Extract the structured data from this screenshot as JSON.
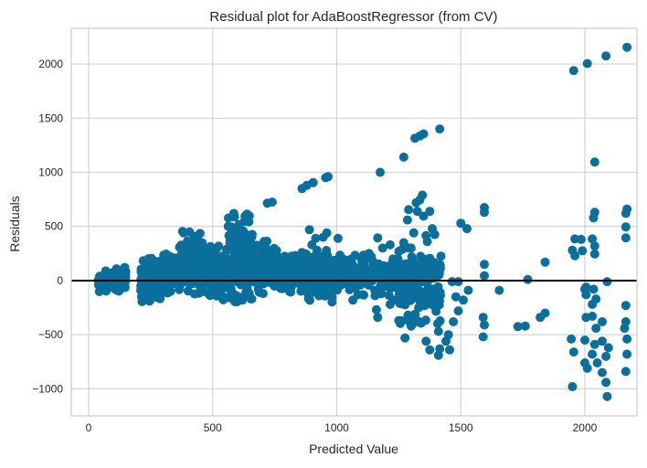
{
  "chart_data": {
    "type": "scatter",
    "title": "Residual plot for AdaBoostRegressor (from CV)",
    "xlabel": "Predicted Value",
    "ylabel": "Residuals",
    "xlim": [
      -70,
      2210
    ],
    "ylim": [
      -1250,
      2330
    ],
    "xticks": [
      0,
      500,
      1000,
      1500,
      2000
    ],
    "yticks": [
      -1000,
      -500,
      0,
      500,
      1000,
      1500,
      2000
    ],
    "xtick_labels": [
      "0",
      "500",
      "1000",
      "1500",
      "2000"
    ],
    "ytick_labels": [
      "−1000",
      "−500",
      "0",
      "500",
      "1000",
      "1500",
      "2000"
    ],
    "grid": true,
    "zero_line": 0,
    "colors": {
      "points": "#0a6f9c",
      "grid": "#d3d3d3",
      "axes_edge": "#cccccc",
      "zero_line": "#000000",
      "background": "#ffffff"
    },
    "series": [
      {
        "points": [
          [
            2170,
            2155
          ],
          [
            2085,
            2075
          ],
          [
            2010,
            2005
          ],
          [
            1955,
            1940
          ],
          [
            2040,
            1095
          ],
          [
            1415,
            1400
          ],
          [
            1350,
            1355
          ],
          [
            1335,
            1335
          ],
          [
            1315,
            1315
          ],
          [
            1270,
            1140
          ],
          [
            1175,
            1000
          ],
          [
            965,
            960
          ],
          [
            955,
            950
          ],
          [
            905,
            905
          ],
          [
            880,
            880
          ],
          [
            860,
            850
          ],
          [
            740,
            725
          ],
          [
            720,
            715
          ],
          [
            1345,
            790
          ],
          [
            1335,
            745
          ],
          [
            1320,
            720
          ],
          [
            1325,
            640
          ],
          [
            1290,
            655
          ],
          [
            1375,
            640
          ],
          [
            1285,
            560
          ],
          [
            1350,
            595
          ],
          [
            2170,
            660
          ],
          [
            2165,
            620
          ],
          [
            1595,
            675
          ],
          [
            1595,
            630
          ],
          [
            2040,
            630
          ],
          [
            2035,
            580
          ],
          [
            1960,
            385
          ],
          [
            1985,
            380
          ],
          [
            2030,
            385
          ],
          [
            2040,
            320
          ],
          [
            1950,
            280
          ],
          [
            1990,
            275
          ],
          [
            2040,
            245
          ],
          [
            1960,
            230
          ],
          [
            2165,
            495
          ],
          [
            2165,
            395
          ],
          [
            1525,
            480
          ],
          [
            1500,
            530
          ],
          [
            1385,
            480
          ],
          [
            1395,
            425
          ],
          [
            1360,
            415
          ],
          [
            1310,
            440
          ],
          [
            1365,
            360
          ],
          [
            1270,
            350
          ],
          [
            1215,
            330
          ],
          [
            1185,
            300
          ],
          [
            1250,
            270
          ],
          [
            1300,
            300
          ],
          [
            1130,
            250
          ],
          [
            1100,
            195
          ],
          [
            1060,
            200
          ],
          [
            1075,
            115
          ],
          [
            1130,
            95
          ],
          [
            1175,
            100
          ],
          [
            1045,
            60
          ],
          [
            975,
            120
          ],
          [
            960,
            440
          ],
          [
            915,
            390
          ],
          [
            890,
            470
          ],
          [
            900,
            330
          ],
          [
            1005,
            390
          ],
          [
            1165,
            395
          ],
          [
            945,
            400
          ],
          [
            860,
            260
          ],
          [
            1595,
            150
          ],
          [
            1595,
            45
          ],
          [
            1655,
            -90
          ],
          [
            1770,
            10
          ],
          [
            1840,
            170
          ],
          [
            1760,
            -420
          ],
          [
            1730,
            -425
          ],
          [
            1840,
            -300
          ],
          [
            1820,
            -340
          ],
          [
            2000,
            -80
          ],
          [
            2090,
            -10
          ],
          [
            2165,
            -230
          ],
          [
            2165,
            -380
          ],
          [
            2160,
            -440
          ],
          [
            2170,
            -540
          ],
          [
            2170,
            -680
          ],
          [
            2165,
            -840
          ],
          [
            2085,
            -940
          ],
          [
            2070,
            -850
          ],
          [
            2090,
            -1070
          ],
          [
            2040,
            -590
          ],
          [
            2045,
            -440
          ],
          [
            2030,
            -330
          ],
          [
            2030,
            -220
          ],
          [
            2045,
            -170
          ],
          [
            2005,
            -130
          ],
          [
            2035,
            -80
          ],
          [
            2005,
            -60
          ],
          [
            1950,
            -980
          ],
          [
            2000,
            -550
          ],
          [
            2010,
            -810
          ],
          [
            1955,
            -660
          ],
          [
            1945,
            -540
          ],
          [
            2005,
            -340
          ],
          [
            2070,
            -560
          ],
          [
            2085,
            -700
          ],
          [
            2070,
            -380
          ],
          [
            2050,
            -760
          ],
          [
            2095,
            -620
          ],
          [
            2030,
            -680
          ],
          [
            2000,
            -760
          ],
          [
            1590,
            -340
          ],
          [
            1595,
            -410
          ],
          [
            1590,
            -520
          ],
          [
            1415,
            -630
          ],
          [
            1410,
            -690
          ],
          [
            1375,
            -640
          ],
          [
            1360,
            -560
          ],
          [
            1440,
            -560
          ],
          [
            1410,
            -470
          ],
          [
            1455,
            -640
          ],
          [
            1450,
            -500
          ],
          [
            1300,
            -420
          ],
          [
            1250,
            -370
          ],
          [
            1275,
            -530
          ],
          [
            1490,
            -280
          ],
          [
            1510,
            -180
          ],
          [
            1480,
            -150
          ],
          [
            1470,
            -380
          ],
          [
            1530,
            -90
          ],
          [
            1465,
            -10
          ],
          [
            1490,
            -10
          ],
          [
            1230,
            -180
          ],
          [
            1215,
            -220
          ],
          [
            1160,
            -270
          ],
          [
            1165,
            -340
          ],
          [
            1065,
            -180
          ],
          [
            1085,
            -130
          ],
          [
            1105,
            -130
          ],
          [
            1180,
            -120
          ],
          [
            1310,
            -350
          ],
          [
            1330,
            -250
          ],
          [
            1345,
            -180
          ],
          [
            1355,
            -230
          ]
        ]
      }
    ],
    "dense_bands": [
      {
        "x": [
          40,
          75
        ],
        "y": [
          -120,
          90
        ],
        "count": 70
      },
      {
        "x": [
          95,
          150
        ],
        "y": [
          -110,
          130
        ],
        "count": 110
      },
      {
        "x": [
          210,
          300
        ],
        "y": [
          -200,
          220
        ],
        "count": 220
      },
      {
        "x": [
          300,
          380
        ],
        "y": [
          -130,
          310
        ],
        "count": 110
      },
      {
        "x": [
          370,
          470
        ],
        "y": [
          -140,
          460
        ],
        "count": 190
      },
      {
        "x": [
          480,
          560
        ],
        "y": [
          -180,
          320
        ],
        "count": 120
      },
      {
        "x": [
          560,
          660
        ],
        "y": [
          -200,
          620
        ],
        "count": 220
      },
      {
        "x": [
          660,
          760
        ],
        "y": [
          -150,
          380
        ],
        "count": 130
      },
      {
        "x": [
          760,
          880
        ],
        "y": [
          -120,
          260
        ],
        "count": 160
      },
      {
        "x": [
          880,
          990
        ],
        "y": [
          -200,
          280
        ],
        "count": 170
      },
      {
        "x": [
          1000,
          1250
        ],
        "y": [
          -160,
          250
        ],
        "count": 140
      },
      {
        "x": [
          1250,
          1420
        ],
        "y": [
          -400,
          320
        ],
        "count": 200
      }
    ]
  }
}
